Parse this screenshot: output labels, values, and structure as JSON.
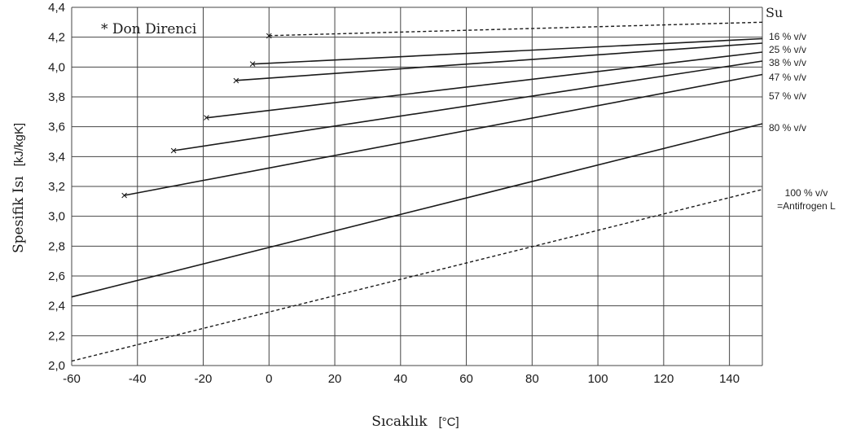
{
  "chart_data": {
    "type": "line",
    "xlabel_text": "Sıcaklık",
    "xlabel_unit": "[°C]",
    "ylabel_text": "Spesifik Isı",
    "ylabel_unit": "[kJ/kgK]",
    "annotation": "* Don Direnci",
    "xlim": [
      -60,
      150
    ],
    "ylim": [
      2.0,
      4.4
    ],
    "x_ticks": [
      "-60",
      "-40",
      "-20",
      "0",
      "20",
      "40",
      "60",
      "80",
      "100",
      "120",
      "140"
    ],
    "y_ticks": [
      "2,0",
      "2,2",
      "2,4",
      "2,6",
      "2,8",
      "3,0",
      "3,2",
      "3,4",
      "3,6",
      "3,8",
      "4,0",
      "4,2",
      "4,4"
    ],
    "grid": true,
    "series": [
      {
        "name": "Su",
        "style": "dashed",
        "x": [
          0,
          150
        ],
        "y": [
          4.21,
          4.3
        ],
        "frost_marker": true
      },
      {
        "name": "16 % v/v",
        "style": "solid",
        "x": [
          -5,
          150
        ],
        "y": [
          4.02,
          4.19
        ],
        "frost_marker": true
      },
      {
        "name": "25 % v/v",
        "style": "solid",
        "x": [
          -10,
          150
        ],
        "y": [
          3.91,
          4.16
        ],
        "frost_marker": true
      },
      {
        "name": "38 % v/v",
        "style": "solid",
        "x": [
          -19,
          150
        ],
        "y": [
          3.66,
          4.1
        ],
        "frost_marker": true
      },
      {
        "name": "47 % v/v",
        "style": "solid",
        "x": [
          -29,
          150
        ],
        "y": [
          3.44,
          4.04
        ],
        "frost_marker": true
      },
      {
        "name": "57 % v/v",
        "style": "solid",
        "x": [
          -44,
          150
        ],
        "y": [
          3.14,
          3.95
        ],
        "frost_marker": true
      },
      {
        "name": "80 % v/v",
        "style": "solid",
        "x": [
          -60,
          150
        ],
        "y": [
          2.46,
          3.62
        ],
        "frost_marker": false
      },
      {
        "name": "100 % v/v",
        "name2": "=Antifrogen L",
        "style": "dashed",
        "x": [
          -60,
          150
        ],
        "y": [
          2.03,
          3.18
        ],
        "frost_marker": false
      }
    ]
  }
}
